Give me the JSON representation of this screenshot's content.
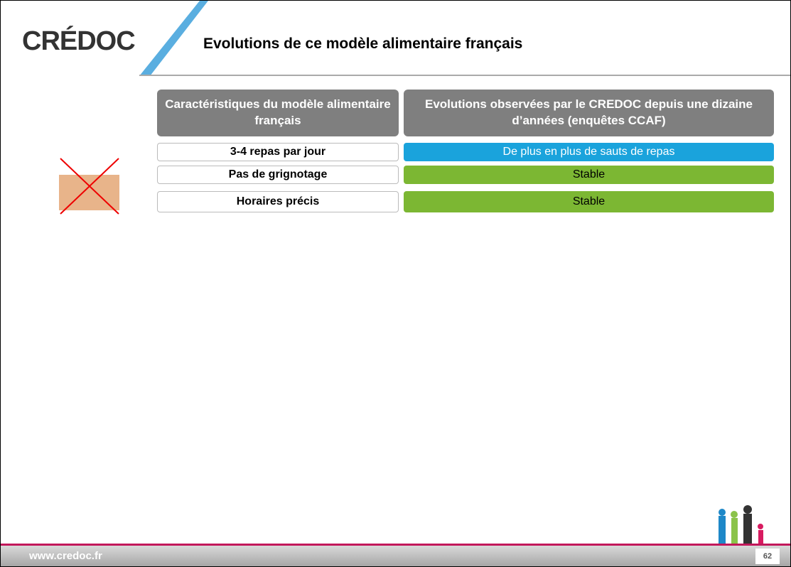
{
  "header": {
    "logo": "CRÉDOC",
    "title": "Evolutions de ce modèle alimentaire français"
  },
  "table": {
    "columns": [
      "Caractéristiques du modèle alimentaire français",
      "Evolutions observées par le CREDOC depuis une dizaine d’années (enquêtes CCAF)"
    ],
    "rows": [
      [
        "3-4 repas par jour",
        "De plus en plus de sauts de repas"
      ],
      [
        "Pas de grignotage",
        "Stable"
      ],
      [
        "Horaires précis",
        "Stable"
      ]
    ]
  },
  "footer": {
    "url": "www.credoc.fr",
    "page": "62"
  }
}
